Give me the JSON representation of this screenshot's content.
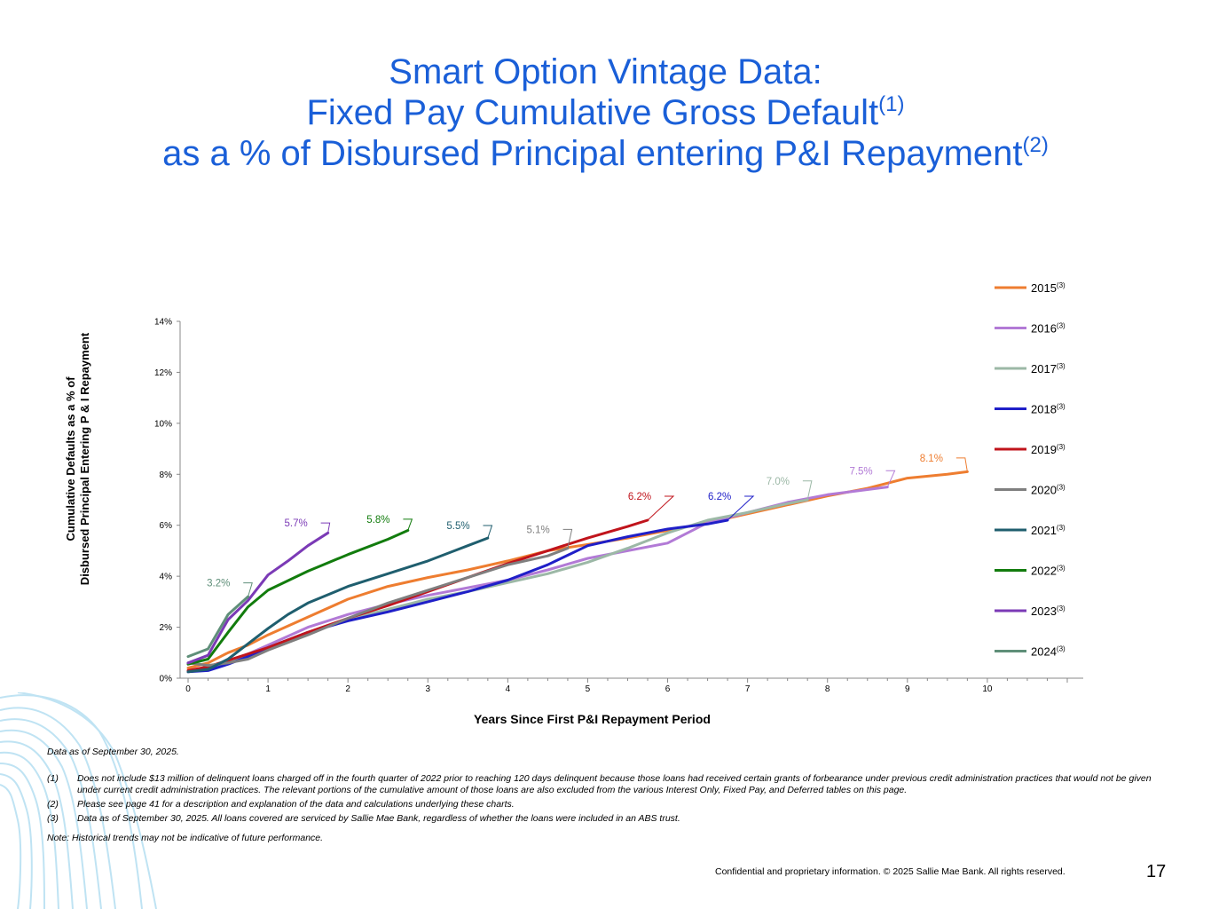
{
  "title": {
    "line1": "Smart Option Vintage Data:",
    "line2": "Fixed Pay Cumulative Gross Default",
    "line2_sup": "(1)",
    "line3": "as a % of Disbursed Principal entering P&I Repayment",
    "line3_sup": "(2)"
  },
  "chart_data": {
    "type": "line",
    "title": "Fixed Pay Cumulative Gross Default as a % of Disbursed Principal entering P&I Repayment",
    "xlabel": "Years Since First P&I Repayment Period",
    "ylabel_line1": "Cumulative Defaults as a % of",
    "ylabel_line2": "Disbursed Principal  Entering P & I Repayment",
    "xlim": [
      -0.1,
      11.2
    ],
    "ylim": [
      0,
      14
    ],
    "xticks": [
      "0",
      "1",
      "2",
      "3",
      "4",
      "5",
      "6",
      "7",
      "8",
      "9",
      "10"
    ],
    "yticks": [
      "0%",
      "2%",
      "4%",
      "6%",
      "8%",
      "10%",
      "12%",
      "14%"
    ],
    "legend_sup": "(3)",
    "series": [
      {
        "name": "2015",
        "color": "#ee7d30",
        "label": "8.1%",
        "label_pos": [
          9.3,
          8.5
        ],
        "x": [
          0,
          0.25,
          0.5,
          0.75,
          1,
          1.5,
          2,
          2.5,
          3,
          3.5,
          4,
          4.5,
          5,
          5.5,
          6,
          6.5,
          7,
          7.5,
          8,
          8.5,
          9,
          9.5,
          9.75
        ],
        "y": [
          0.4,
          0.6,
          1.0,
          1.3,
          1.7,
          2.4,
          3.1,
          3.6,
          3.95,
          4.25,
          4.6,
          5.0,
          5.25,
          5.5,
          5.8,
          6.1,
          6.45,
          6.8,
          7.15,
          7.45,
          7.85,
          8.0,
          8.1
        ]
      },
      {
        "name": "2016",
        "color": "#b27ad6",
        "label": "7.5%",
        "label_pos": [
          8.42,
          8.0
        ],
        "x": [
          0,
          0.25,
          0.5,
          0.75,
          1,
          1.5,
          2,
          2.5,
          3,
          3.5,
          4,
          4.5,
          5,
          5.5,
          6,
          6.5,
          7,
          7.5,
          8,
          8.5,
          8.75
        ],
        "y": [
          0.3,
          0.4,
          0.65,
          0.95,
          1.3,
          2.0,
          2.5,
          2.9,
          3.25,
          3.55,
          3.85,
          4.25,
          4.7,
          5.0,
          5.3,
          6.1,
          6.5,
          6.9,
          7.2,
          7.4,
          7.5
        ]
      },
      {
        "name": "2017",
        "color": "#9cb8a6",
        "label": "7.0%",
        "label_pos": [
          7.38,
          7.6
        ],
        "x": [
          0,
          0.25,
          0.5,
          0.75,
          1,
          1.5,
          2,
          2.5,
          3,
          3.5,
          4,
          4.5,
          5,
          5.5,
          6,
          6.5,
          7,
          7.5,
          7.75
        ],
        "y": [
          0.25,
          0.35,
          0.6,
          0.9,
          1.2,
          1.8,
          2.3,
          2.7,
          3.1,
          3.4,
          3.75,
          4.1,
          4.55,
          5.1,
          5.7,
          6.2,
          6.5,
          6.85,
          7.0
        ]
      },
      {
        "name": "2018",
        "color": "#1f1fc8",
        "label": "6.2%",
        "label_pos": [
          6.65,
          7.0
        ],
        "x": [
          0,
          0.25,
          0.5,
          0.75,
          1,
          1.5,
          2,
          2.5,
          3,
          3.5,
          4,
          4.5,
          5,
          5.5,
          6,
          6.5,
          6.75
        ],
        "y": [
          0.25,
          0.3,
          0.55,
          0.85,
          1.2,
          1.8,
          2.25,
          2.6,
          3.0,
          3.4,
          3.85,
          4.45,
          5.2,
          5.55,
          5.85,
          6.05,
          6.2
        ]
      },
      {
        "name": "2019",
        "color": "#c0141c",
        "label": "6.2%",
        "label_pos": [
          5.65,
          7.0
        ],
        "x": [
          0,
          0.25,
          0.5,
          0.75,
          1,
          1.5,
          2,
          2.5,
          3,
          3.5,
          4,
          4.5,
          5,
          5.5,
          5.75
        ],
        "y": [
          0.3,
          0.45,
          0.7,
          0.95,
          1.2,
          1.8,
          2.35,
          2.85,
          3.4,
          3.95,
          4.5,
          5.0,
          5.5,
          5.95,
          6.2
        ]
      },
      {
        "name": "2020",
        "color": "#7f7f7f",
        "label": "5.1%",
        "label_pos": [
          4.38,
          5.7
        ],
        "x": [
          0,
          0.25,
          0.5,
          0.75,
          1,
          1.5,
          2,
          2.5,
          3,
          3.5,
          4,
          4.5,
          4.75
        ],
        "y": [
          0.6,
          0.5,
          0.6,
          0.75,
          1.1,
          1.7,
          2.35,
          2.95,
          3.45,
          3.95,
          4.45,
          4.8,
          5.1
        ]
      },
      {
        "name": "2021",
        "color": "#1f5e6e",
        "label": "5.5%",
        "label_pos": [
          3.38,
          5.85
        ],
        "x": [
          0,
          0.25,
          0.5,
          0.75,
          1,
          1.25,
          1.5,
          2,
          2.5,
          3,
          3.5,
          3.75
        ],
        "y": [
          0.25,
          0.35,
          0.75,
          1.35,
          1.95,
          2.5,
          2.95,
          3.6,
          4.1,
          4.6,
          5.2,
          5.5
        ]
      },
      {
        "name": "2022",
        "color": "#127c0d",
        "label": "5.8%",
        "label_pos": [
          2.38,
          6.1
        ],
        "x": [
          0,
          0.25,
          0.5,
          0.75,
          1,
          1.5,
          2,
          2.5,
          2.75
        ],
        "y": [
          0.55,
          0.75,
          1.8,
          2.8,
          3.45,
          4.2,
          4.85,
          5.45,
          5.8
        ]
      },
      {
        "name": "2023",
        "color": "#7b3ab6",
        "label": "5.7%",
        "label_pos": [
          1.35,
          5.95
        ],
        "x": [
          0,
          0.25,
          0.5,
          0.75,
          1,
          1.25,
          1.5,
          1.75
        ],
        "y": [
          0.6,
          0.9,
          2.3,
          3.05,
          4.05,
          4.6,
          5.2,
          5.7
        ]
      },
      {
        "name": "2024",
        "color": "#5f8f79",
        "label": "3.2%",
        "label_pos": [
          0.38,
          3.6
        ],
        "x": [
          0,
          0.25,
          0.5,
          0.75
        ],
        "y": [
          0.85,
          1.15,
          2.5,
          3.2
        ]
      }
    ]
  },
  "notes": {
    "as_of": "Data as of September 30, 2025.",
    "footnotes": [
      {
        "num": "(1)",
        "text": "Does not include $13 million of delinquent loans charged off in the fourth quarter of 2022 prior to reaching 120 days delinquent because those loans had received certain grants of forbearance under previous credit administration practices that would not be given under current credit administration practices. The relevant portions of the cumulative amount of those loans are also excluded from the various Interest Only, Fixed Pay, and Deferred tables on this page."
      },
      {
        "num": "(2)",
        "text": "Please see page 41 for a description and explanation of the data and calculations underlying these charts."
      },
      {
        "num": "(3)",
        "text": "Data as of September 30, 2025. All loans covered are serviced by Sallie Mae Bank, regardless of whether the loans were included in an ABS trust."
      }
    ],
    "historical": "Note: Historical trends may not be indicative of future performance."
  },
  "footer": {
    "confidential": "Confidential and proprietary information. © 2025 Sallie Mae Bank. All rights reserved.",
    "page_number": "17"
  }
}
